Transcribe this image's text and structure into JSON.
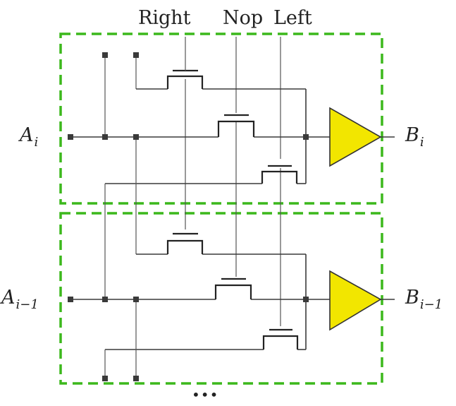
{
  "controls": {
    "right": "Right",
    "nop": "Nop",
    "left": "Left"
  },
  "stages": [
    {
      "input": "A",
      "input_sub": "i",
      "output": "B",
      "output_sub": "i"
    },
    {
      "input": "A",
      "input_sub": "i−1",
      "output": "B",
      "output_sub": "i−1"
    }
  ],
  "continuation": "•••",
  "colors": {
    "stage_border": "#3cb81c",
    "buffer_fill": "#f2e600"
  }
}
